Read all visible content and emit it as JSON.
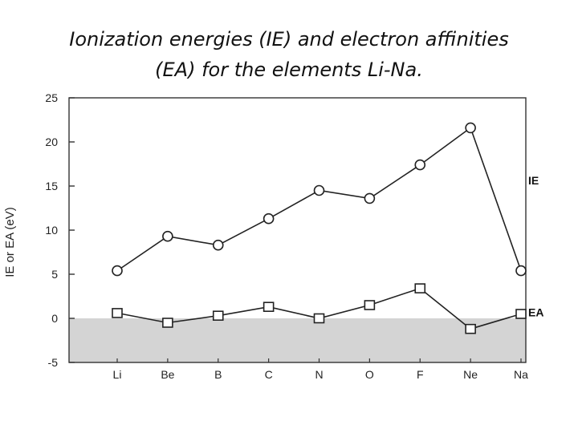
{
  "title_line1": "Ionization energies (IE) and electron affinities",
  "title_line2": "(EA) for the elements Li-Na.",
  "chart_data": {
    "type": "line",
    "ylabel": "IE or EA (eV)",
    "categories": [
      "Li",
      "Be",
      "B",
      "C",
      "N",
      "O",
      "F",
      "Ne",
      "Na"
    ],
    "ylim": [
      -5,
      25
    ],
    "yticks": [
      25,
      20,
      15,
      10,
      5,
      0,
      -5
    ],
    "shaded_region": [
      -5,
      0
    ],
    "shaded_color": "#d4d4d4",
    "series": [
      {
        "name": "IE",
        "marker": "circle",
        "values": [
          5.4,
          9.3,
          8.3,
          11.3,
          14.5,
          13.6,
          17.4,
          21.6,
          5.4
        ]
      },
      {
        "name": "EA",
        "marker": "square",
        "values": [
          0.6,
          -0.5,
          0.3,
          1.3,
          0.0,
          1.5,
          3.4,
          -1.2,
          0.5
        ]
      }
    ]
  }
}
